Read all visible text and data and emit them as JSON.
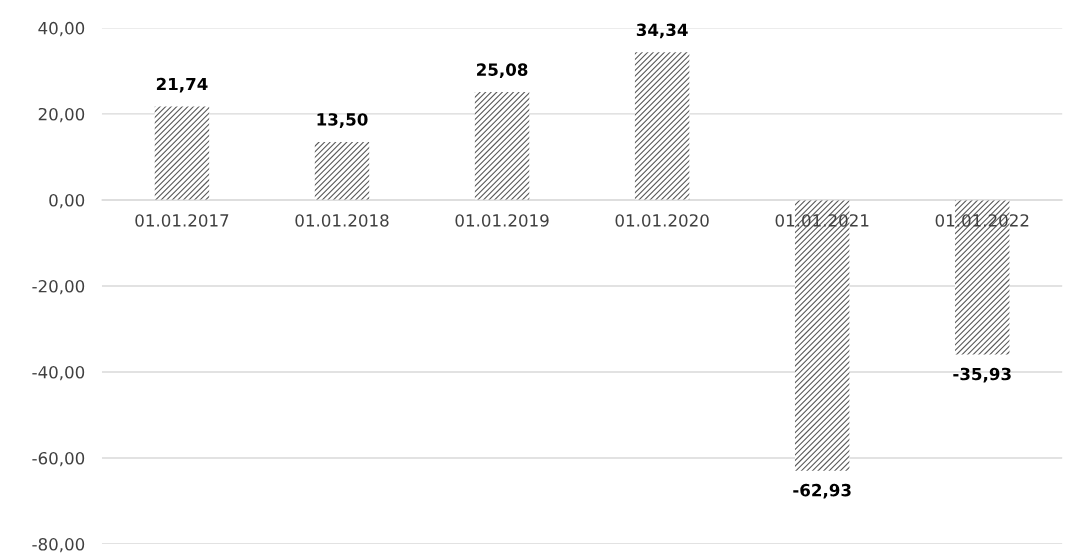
{
  "chart_data": {
    "type": "bar",
    "categories": [
      "01.01.2017",
      "01.01.2018",
      "01.01.2019",
      "01.01.2020",
      "01.01.2021",
      "01.01.2022"
    ],
    "values": [
      21.74,
      13.5,
      25.08,
      34.34,
      -62.93,
      -35.93
    ],
    "value_labels": [
      "21,74",
      "13,50",
      "25,08",
      "34,34",
      "-62,93",
      "-35,93"
    ],
    "color": "#595959",
    "ylim": [
      -80,
      40
    ],
    "yticks": [
      {
        "value": -80,
        "label": "-80,00"
      },
      {
        "value": -60,
        "label": "-60,00"
      },
      {
        "value": -40,
        "label": "-40,00"
      },
      {
        "value": -20,
        "label": "-20,00"
      },
      {
        "value": 0,
        "label": "0,00"
      },
      {
        "value": 20,
        "label": "20,00"
      },
      {
        "value": 40,
        "label": "40,00"
      }
    ],
    "grid": "y",
    "legend": false
  }
}
